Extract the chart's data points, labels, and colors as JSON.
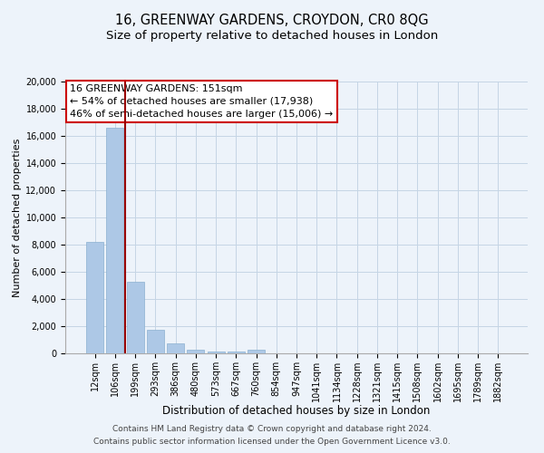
{
  "title1": "16, GREENWAY GARDENS, CROYDON, CR0 8QG",
  "title2": "Size of property relative to detached houses in London",
  "xlabel": "Distribution of detached houses by size in London",
  "ylabel": "Number of detached properties",
  "bar_labels": [
    "12sqm",
    "106sqm",
    "199sqm",
    "293sqm",
    "386sqm",
    "480sqm",
    "573sqm",
    "667sqm",
    "760sqm",
    "854sqm",
    "947sqm",
    "1041sqm",
    "1134sqm",
    "1228sqm",
    "1321sqm",
    "1415sqm",
    "1508sqm",
    "1602sqm",
    "1695sqm",
    "1789sqm",
    "1882sqm"
  ],
  "bar_values": [
    8200,
    16600,
    5300,
    1750,
    750,
    280,
    120,
    120,
    270,
    0,
    0,
    0,
    0,
    0,
    0,
    0,
    0,
    0,
    0,
    0,
    0
  ],
  "bar_color": "#adc8e6",
  "bar_edgecolor": "#8ab0d0",
  "vline_color": "#990000",
  "annotation_title": "16 GREENWAY GARDENS: 151sqm",
  "annotation_line1": "← 54% of detached houses are smaller (17,938)",
  "annotation_line2": "46% of semi-detached houses are larger (15,006) →",
  "annotation_box_facecolor": "#ffffff",
  "annotation_box_edgecolor": "#cc0000",
  "ylim": [
    0,
    20000
  ],
  "yticks": [
    0,
    2000,
    4000,
    6000,
    8000,
    10000,
    12000,
    14000,
    16000,
    18000,
    20000
  ],
  "footer1": "Contains HM Land Registry data © Crown copyright and database right 2024.",
  "footer2": "Contains public sector information licensed under the Open Government Licence v3.0.",
  "bg_color": "#edf3fa",
  "plot_bg_color": "#edf3fa",
  "grid_color": "#c5d5e5",
  "title1_fontsize": 10.5,
  "title2_fontsize": 9.5,
  "xlabel_fontsize": 8.5,
  "ylabel_fontsize": 8,
  "tick_fontsize": 7,
  "footer_fontsize": 6.5,
  "annot_fontsize": 8
}
